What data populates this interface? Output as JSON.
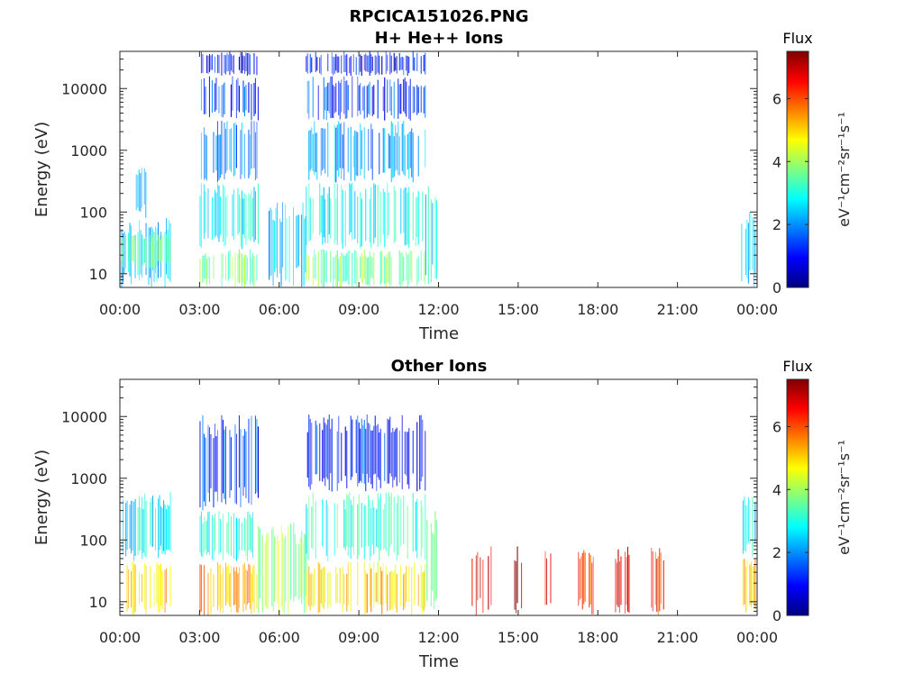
{
  "figure": {
    "title": "RPCICA151026.PNG",
    "colorbar_title": "Flux",
    "colorbar_label": "eV⁻¹cm⁻²sr⁻¹s⁻¹",
    "colorbar_ticks": [
      "0",
      "2",
      "4",
      "6"
    ],
    "colorbar_range": [
      0,
      7.5
    ],
    "colormap": "jet",
    "colormap_stops": [
      "#00007f",
      "#0000ff",
      "#007fff",
      "#00ffff",
      "#7fff7f",
      "#ffff00",
      "#ff7f00",
      "#ff0000",
      "#7f0000"
    ]
  },
  "chart_data": [
    {
      "type": "heatmap",
      "title": "H+ He++ Ions",
      "xlabel": "Time",
      "ylabel": "Energy (eV)",
      "x_ticks": [
        "00:00",
        "03:00",
        "06:00",
        "09:00",
        "12:00",
        "15:00",
        "18:00",
        "21:00",
        "00:00"
      ],
      "xlim_hours": [
        0,
        24
      ],
      "y_scale": "log",
      "y_ticks": [
        "10",
        "100",
        "1000",
        "10000"
      ],
      "ylim": [
        6,
        40000
      ],
      "blocks": [
        {
          "t0": 0.05,
          "t1": 1.9,
          "e_lo": 6,
          "e_hi": 80,
          "flux": 2.5
        },
        {
          "t0": 0.05,
          "t1": 1.9,
          "e_lo": 12,
          "e_hi": 45,
          "flux": 3.4
        },
        {
          "t0": 0.6,
          "t1": 1.0,
          "e_lo": 80,
          "e_hi": 600,
          "flux": 2.0
        },
        {
          "t0": 3.0,
          "t1": 5.2,
          "e_lo": 6,
          "e_hi": 25,
          "flux": 3.7
        },
        {
          "t0": 3.0,
          "t1": 5.2,
          "e_lo": 25,
          "e_hi": 300,
          "flux": 2.7
        },
        {
          "t0": 3.0,
          "t1": 5.2,
          "e_lo": 300,
          "e_hi": 3000,
          "flux": 2.0
        },
        {
          "t0": 3.0,
          "t1": 5.2,
          "e_lo": 3000,
          "e_hi": 16000,
          "flux": 1.3
        },
        {
          "t0": 3.0,
          "t1": 5.2,
          "e_lo": 16000,
          "e_hi": 40000,
          "flux": 0.9
        },
        {
          "t0": 5.6,
          "t1": 7.0,
          "e_lo": 6,
          "e_hi": 150,
          "flux": 2.4
        },
        {
          "t0": 7.0,
          "t1": 11.5,
          "e_lo": 6,
          "e_hi": 25,
          "flux": 3.7
        },
        {
          "t0": 7.0,
          "t1": 11.5,
          "e_lo": 25,
          "e_hi": 300,
          "flux": 2.8
        },
        {
          "t0": 7.0,
          "t1": 11.5,
          "e_lo": 300,
          "e_hi": 3000,
          "flux": 2.0
        },
        {
          "t0": 7.0,
          "t1": 11.5,
          "e_lo": 3000,
          "e_hi": 16000,
          "flux": 1.3
        },
        {
          "t0": 7.0,
          "t1": 11.5,
          "e_lo": 16000,
          "e_hi": 40000,
          "flux": 0.9
        },
        {
          "t0": 11.5,
          "t1": 11.95,
          "e_lo": 6,
          "e_hi": 300,
          "flux": 2.7
        },
        {
          "t0": 23.4,
          "t1": 23.95,
          "e_lo": 6,
          "e_hi": 100,
          "flux": 2.6
        }
      ]
    },
    {
      "type": "heatmap",
      "title": "Other Ions",
      "xlabel": "Time",
      "ylabel": "Energy (eV)",
      "x_ticks": [
        "00:00",
        "03:00",
        "06:00",
        "09:00",
        "12:00",
        "15:00",
        "18:00",
        "21:00",
        "00:00"
      ],
      "xlim_hours": [
        0,
        24
      ],
      "y_scale": "log",
      "y_ticks": [
        "10",
        "100",
        "1000",
        "10000"
      ],
      "ylim": [
        6,
        40000
      ],
      "blocks": [
        {
          "t0": 0.05,
          "t1": 1.9,
          "e_lo": 45,
          "e_hi": 600,
          "flux": 2.8
        },
        {
          "t0": 0.05,
          "t1": 1.9,
          "e_lo": 6,
          "e_hi": 45,
          "flux": 5.2
        },
        {
          "t0": 3.0,
          "t1": 5.2,
          "e_lo": 6,
          "e_hi": 45,
          "flux": 5.4
        },
        {
          "t0": 3.0,
          "t1": 5.2,
          "e_lo": 45,
          "e_hi": 300,
          "flux": 3.0
        },
        {
          "t0": 3.0,
          "t1": 5.2,
          "e_lo": 300,
          "e_hi": 11000,
          "flux": 1.3
        },
        {
          "t0": 5.2,
          "t1": 7.0,
          "e_lo": 6,
          "e_hi": 200,
          "flux": 4.0
        },
        {
          "t0": 7.0,
          "t1": 11.5,
          "e_lo": 6,
          "e_hi": 45,
          "flux": 5.0
        },
        {
          "t0": 7.0,
          "t1": 11.5,
          "e_lo": 45,
          "e_hi": 600,
          "flux": 3.2
        },
        {
          "t0": 7.0,
          "t1": 11.5,
          "e_lo": 600,
          "e_hi": 11000,
          "flux": 1.2
        },
        {
          "t0": 11.5,
          "t1": 11.95,
          "e_lo": 6,
          "e_hi": 300,
          "flux": 3.4
        },
        {
          "t0": 13.25,
          "t1": 14.0,
          "e_lo": 6,
          "e_hi": 80,
          "flux": 6.8
        },
        {
          "t0": 14.85,
          "t1": 15.2,
          "e_lo": 6,
          "e_hi": 80,
          "flux": 6.9
        },
        {
          "t0": 15.9,
          "t1": 16.5,
          "e_lo": 6,
          "e_hi": 80,
          "flux": 6.3
        },
        {
          "t0": 17.25,
          "t1": 17.85,
          "e_lo": 6,
          "e_hi": 80,
          "flux": 6.2
        },
        {
          "t0": 18.65,
          "t1": 19.2,
          "e_lo": 6,
          "e_hi": 80,
          "flux": 6.6
        },
        {
          "t0": 19.95,
          "t1": 20.55,
          "e_lo": 6,
          "e_hi": 80,
          "flux": 6.4
        },
        {
          "t0": 23.4,
          "t1": 23.95,
          "e_lo": 6,
          "e_hi": 50,
          "flux": 5.0
        },
        {
          "t0": 23.4,
          "t1": 23.95,
          "e_lo": 50,
          "e_hi": 600,
          "flux": 2.8
        }
      ]
    }
  ]
}
